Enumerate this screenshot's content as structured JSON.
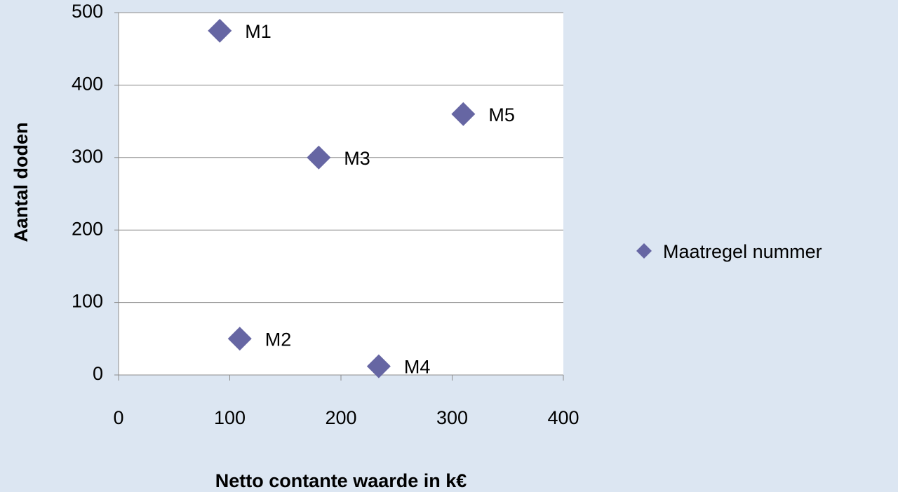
{
  "chart_data": {
    "type": "scatter",
    "xlabel": "Netto contante waarde in k€",
    "ylabel": "Aantal doden",
    "series": [
      {
        "name": "Maatregel nummer",
        "color": "#6666a3",
        "x": [
          91,
          109,
          180,
          234,
          310
        ],
        "values": [
          475,
          50,
          300,
          12,
          360
        ],
        "labels": [
          "M1",
          "M2",
          "M3",
          "M4",
          "M5"
        ]
      }
    ],
    "xlim": [
      0,
      400
    ],
    "xticks": [
      0,
      100,
      200,
      300,
      400
    ],
    "ylim": [
      0,
      500
    ],
    "yticks": [
      0,
      100,
      200,
      300,
      400,
      500
    ],
    "grid": true,
    "legend": "right"
  }
}
